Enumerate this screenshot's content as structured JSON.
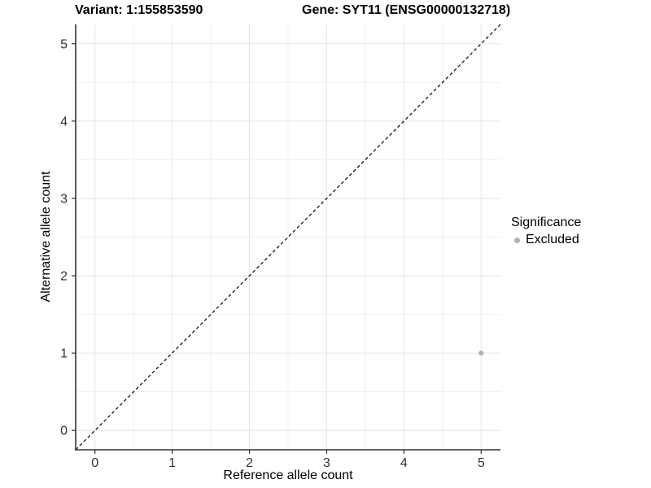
{
  "chart_data": {
    "type": "scatter",
    "title_left": "Variant: 1:155853590",
    "title_right": "Gene: SYT11 (ENSG00000132718)",
    "xlabel": "Reference allele count",
    "ylabel": "Alternative allele count",
    "xlim": [
      -0.25,
      5.25
    ],
    "ylim": [
      -0.25,
      5.25
    ],
    "x_ticks": [
      0,
      1,
      2,
      3,
      4,
      5
    ],
    "y_ticks": [
      0,
      1,
      2,
      3,
      4,
      5
    ],
    "x_minor_ticks": [
      0.5,
      1.5,
      2.5,
      3.5,
      4.5
    ],
    "y_minor_ticks": [
      0.5,
      1.5,
      2.5,
      3.5,
      4.5
    ],
    "grid": "major+minor",
    "points": [
      {
        "x": 5,
        "y": 1,
        "significance": "Excluded"
      }
    ],
    "identity_line": {
      "slope": 1,
      "intercept": 0,
      "style": "dashed"
    },
    "legend": {
      "title": "Significance",
      "position": "right",
      "entries": [
        {
          "label": "Excluded",
          "color": "#b2b2b2"
        }
      ]
    },
    "colors": {
      "point": "#b2b2b2",
      "grid_major": "#e5e5e5",
      "grid_minor": "#f0f0f0",
      "axis_line": "#333333",
      "tick_mark": "#333333",
      "tick_label": "#333333",
      "identity_line": "#000000",
      "background": "#ffffff"
    }
  }
}
